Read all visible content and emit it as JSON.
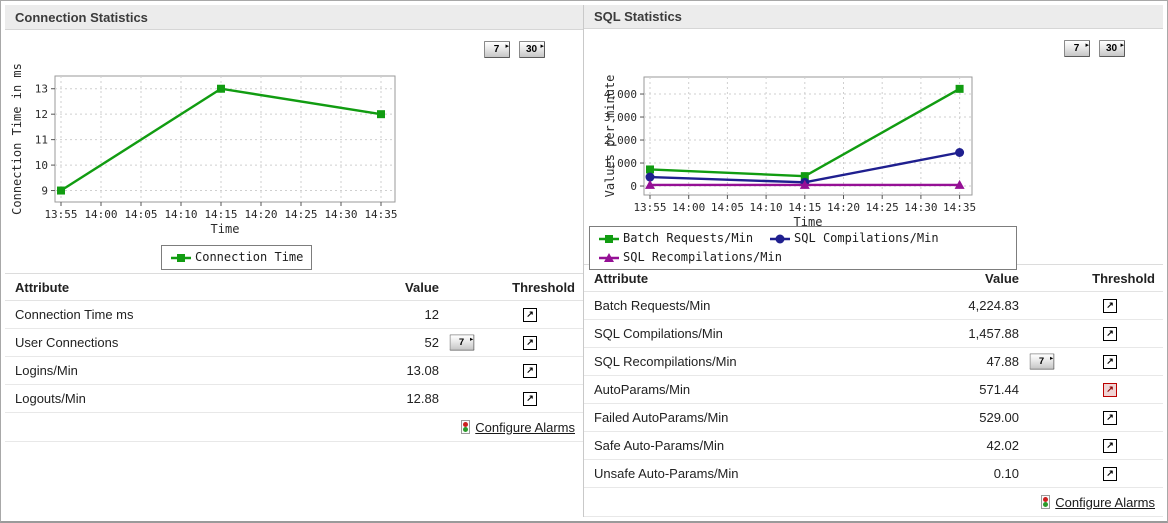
{
  "icons": {
    "threshold_arrow": "↗",
    "period_caret": "▸"
  },
  "colors": {
    "header_bg": "#ececec",
    "series_green": "#119c11",
    "series_navy": "#1f1f8f",
    "series_purple": "#951095",
    "alarm_red": "#bb0000"
  },
  "panels": [
    {
      "title": "Connection Statistics",
      "period_buttons": [
        "7",
        "30"
      ],
      "table": {
        "headers": {
          "attribute": "Attribute",
          "value": "Value",
          "threshold": "Threshold"
        },
        "rows": [
          {
            "attribute": "Connection Time ms",
            "value": "12",
            "period_button": null,
            "alarm": false
          },
          {
            "attribute": "User Connections",
            "value": "52",
            "period_button": "7",
            "alarm": false
          },
          {
            "attribute": "Logins/Min",
            "value": "13.08",
            "period_button": null,
            "alarm": false
          },
          {
            "attribute": "Logouts/Min",
            "value": "12.88",
            "period_button": null,
            "alarm": false
          }
        ],
        "configure_alarms_label": "Configure Alarms"
      }
    },
    {
      "title": "SQL Statistics",
      "period_buttons": [
        "7",
        "30"
      ],
      "table": {
        "headers": {
          "attribute": "Attribute",
          "value": "Value",
          "threshold": "Threshold"
        },
        "rows": [
          {
            "attribute": "Batch Requests/Min",
            "value": "4,224.83",
            "period_button": null,
            "alarm": false
          },
          {
            "attribute": "SQL Compilations/Min",
            "value": "1,457.88",
            "period_button": null,
            "alarm": false
          },
          {
            "attribute": "SQL Recompilations/Min",
            "value": "47.88",
            "period_button": "7",
            "alarm": false
          },
          {
            "attribute": "AutoParams/Min",
            "value": "571.44",
            "period_button": null,
            "alarm": true
          },
          {
            "attribute": "Failed AutoParams/Min",
            "value": "529.00",
            "period_button": null,
            "alarm": false
          },
          {
            "attribute": "Safe Auto-Params/Min",
            "value": "42.02",
            "period_button": null,
            "alarm": false
          },
          {
            "attribute": "Unsafe Auto-Params/Min",
            "value": "0.10",
            "period_button": null,
            "alarm": false
          }
        ],
        "configure_alarms_label": "Configure Alarms"
      }
    }
  ],
  "chart_data": [
    {
      "type": "line",
      "title": "Connection Statistics",
      "xlabel": "Time",
      "ylabel": "Connection Time in ms",
      "x_ticks": [
        "13:55",
        "14:00",
        "14:05",
        "14:10",
        "14:15",
        "14:20",
        "14:25",
        "14:30",
        "14:35"
      ],
      "y_ticks": [
        9,
        10,
        11,
        12,
        13
      ],
      "ylim": [
        9,
        13
      ],
      "grid": true,
      "legend_position": "bottom",
      "x": [
        "13:55",
        "14:15",
        "14:35"
      ],
      "series": [
        {
          "name": "Connection Time",
          "marker": "square",
          "color": "#119c11",
          "values": [
            9,
            13,
            12
          ]
        }
      ]
    },
    {
      "type": "line",
      "title": "SQL Statistics",
      "xlabel": "Time",
      "ylabel": "Values per minute",
      "x_ticks": [
        "13:55",
        "14:00",
        "14:05",
        "14:10",
        "14:15",
        "14:20",
        "14:25",
        "14:30",
        "14:35"
      ],
      "y_ticks": [
        0,
        1000,
        2000,
        3000,
        4000
      ],
      "ylim": [
        0,
        4000
      ],
      "grid": true,
      "legend_position": "bottom",
      "x": [
        "13:55",
        "14:15",
        "14:35"
      ],
      "series": [
        {
          "name": "Batch Requests/Min",
          "marker": "square",
          "color": "#119c11",
          "values": [
            720,
            430,
            4224.83
          ]
        },
        {
          "name": "SQL Compilations/Min",
          "marker": "circle",
          "color": "#1f1f8f",
          "values": [
            390,
            160,
            1457.88
          ]
        },
        {
          "name": "SQL Recompilations/Min",
          "marker": "triangle",
          "color": "#951095",
          "values": [
            48,
            48,
            47.88
          ]
        }
      ]
    }
  ]
}
